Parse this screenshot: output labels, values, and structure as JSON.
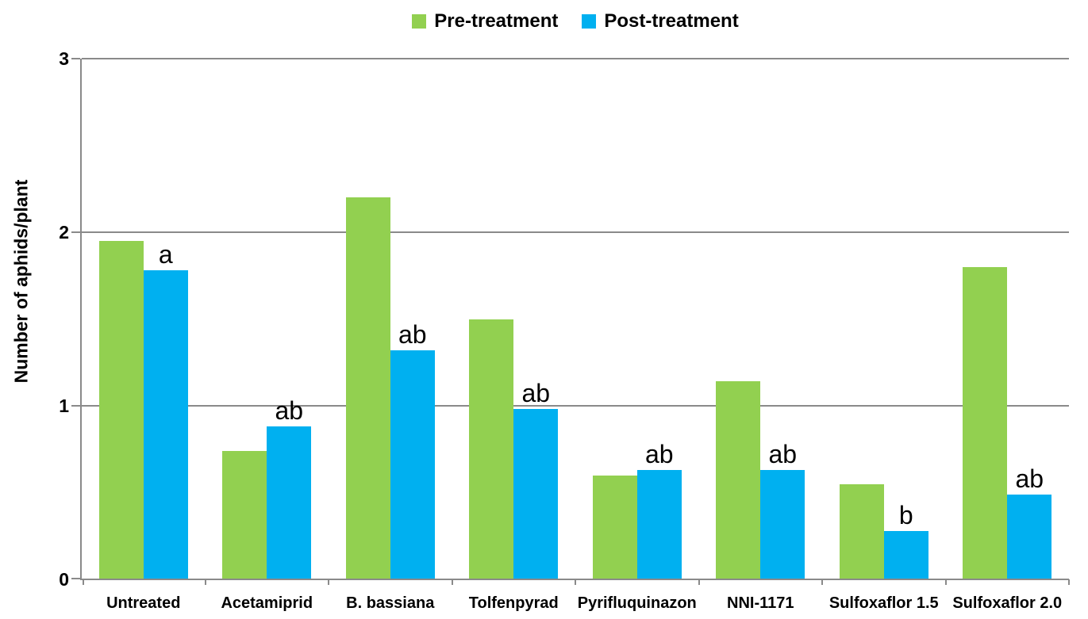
{
  "chart_data": {
    "type": "bar",
    "title": "",
    "xlabel": "",
    "ylabel": "Number of aphids/plant",
    "ylim": [
      0,
      3
    ],
    "yticks": [
      0,
      1,
      2,
      3
    ],
    "grid": "horizontal",
    "legend_position": "top-center",
    "categories": [
      "Untreated",
      "Acetamiprid",
      "B. bassiana",
      "Tolfenpyrad",
      "Pyrifluquinazon",
      "NNI-1171",
      "Sulfoxaflor 1.5",
      "Sulfoxaflor 2.0"
    ],
    "series": [
      {
        "name": "Pre-treatment",
        "color": "#92D050",
        "values": [
          1.95,
          0.74,
          2.2,
          1.5,
          0.6,
          1.14,
          0.55,
          1.8
        ]
      },
      {
        "name": "Post-treatment",
        "color": "#00B0F0",
        "values": [
          1.78,
          0.88,
          1.32,
          0.98,
          0.63,
          0.63,
          0.28,
          0.49
        ]
      }
    ],
    "annotations": {
      "description": "Statistical significance letters shown above the Post-treatment bars",
      "letters": [
        "a",
        "ab",
        "ab",
        "ab",
        "ab",
        "ab",
        "b",
        "ab"
      ]
    }
  },
  "colors": {
    "background": "#FFFFFF",
    "axis_and_grid": "#8A8A8A",
    "text": "#000000",
    "pre_treatment": "#92D050",
    "post_treatment": "#00B0F0"
  }
}
